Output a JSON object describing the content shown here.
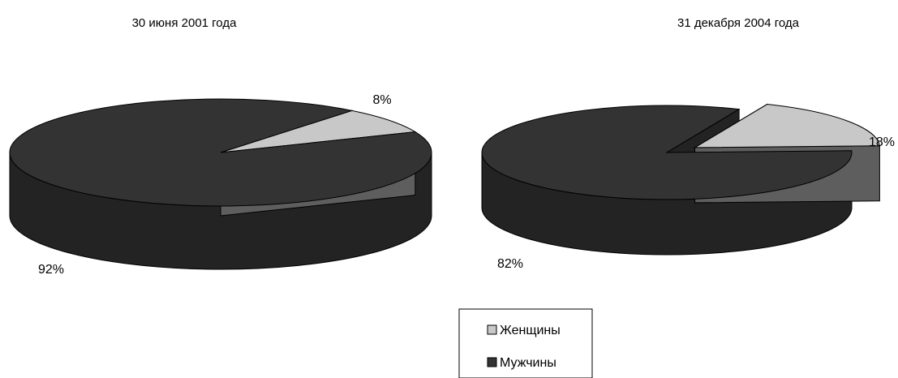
{
  "chart_data": [
    {
      "type": "pie",
      "title": "30 июня 2001 года",
      "categories": [
        "Женщины",
        "Мужчины"
      ],
      "values": [
        8,
        92
      ],
      "value_labels": [
        "8%",
        "92%"
      ],
      "exploded": "none"
    },
    {
      "type": "pie",
      "title": "31 декабря 2004  года",
      "categories": [
        "Женщины",
        "Мужчины"
      ],
      "values": [
        18,
        82
      ],
      "value_labels": [
        "18%",
        "82%"
      ],
      "exploded": "Женщины"
    }
  ],
  "legend": {
    "placement": "bottom-center",
    "items": [
      {
        "label": "Женщины",
        "color": "#c8c8c8"
      },
      {
        "label": "Мужчины",
        "color": "#333333"
      }
    ]
  },
  "colors": {
    "women_top": "#c8c8c8",
    "women_side": "#5e5e5e",
    "men_top": "#333333",
    "men_side": "#232323",
    "outline": "#000000"
  }
}
